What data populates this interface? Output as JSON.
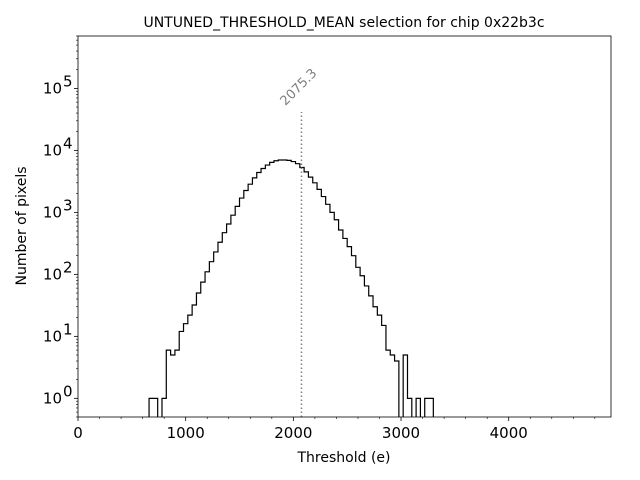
{
  "chart_data": {
    "type": "histogram",
    "title": "UNTUNED_THRESHOLD_MEAN selection for chip 0x22b3c",
    "xlabel": "Threshold (e)",
    "ylabel": "Number of pixels",
    "xlim": [
      0,
      4950
    ],
    "ylim": [
      0.5,
      700000
    ],
    "yscale": "log",
    "x_ticks": [
      0,
      1000,
      2000,
      3000,
      4000
    ],
    "x_tick_labels": [
      "0",
      "1000",
      "2000",
      "3000",
      "4000"
    ],
    "y_ticks": [
      1,
      10,
      100,
      1000,
      10000,
      100000
    ],
    "y_tick_labels": [
      {
        "base": "10",
        "exp": "0"
      },
      {
        "base": "10",
        "exp": "1"
      },
      {
        "base": "10",
        "exp": "2"
      },
      {
        "base": "10",
        "exp": "3"
      },
      {
        "base": "10",
        "exp": "4"
      },
      {
        "base": "10",
        "exp": "5"
      }
    ],
    "bin_width": 40,
    "bins_start": 660,
    "counts": [
      1,
      1,
      0,
      1,
      6,
      5,
      6,
      12,
      16,
      22,
      32,
      50,
      75,
      110,
      160,
      230,
      330,
      470,
      650,
      900,
      1250,
      1700,
      2250,
      2850,
      3600,
      4400,
      5100,
      5800,
      6400,
      6800,
      7000,
      7000,
      6900,
      6600,
      6100,
      5300,
      4500,
      3700,
      3000,
      2350,
      1800,
      1350,
      1000,
      760,
      520,
      380,
      280,
      200,
      130,
      95,
      65,
      45,
      30,
      22,
      15,
      6,
      5,
      4,
      0,
      5,
      1,
      0,
      1,
      0,
      1,
      1
    ],
    "vline": {
      "x": 2075.3,
      "label": "2075.3",
      "color": "#808080"
    },
    "grid": false
  }
}
